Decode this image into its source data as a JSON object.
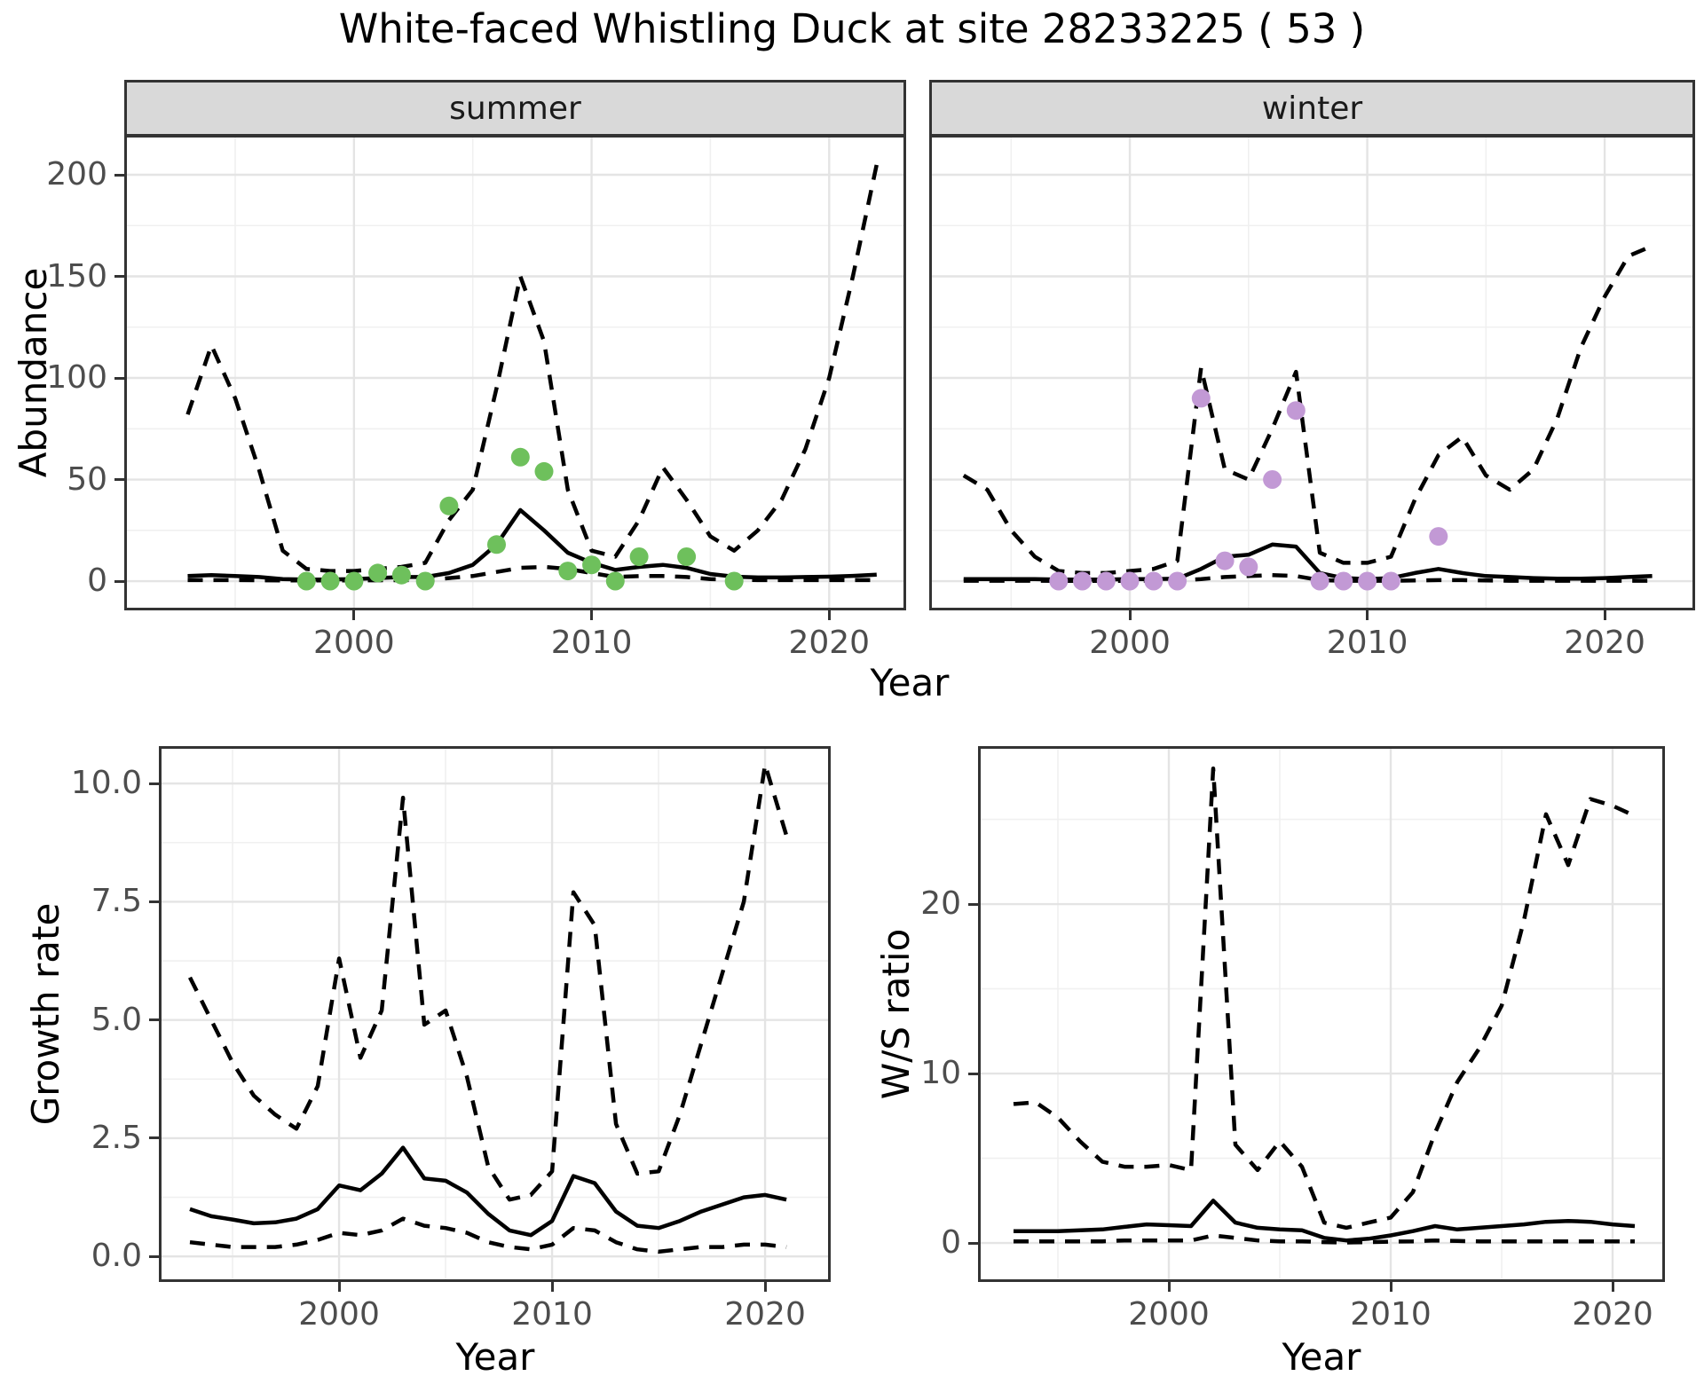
{
  "title": "White-faced Whistling Duck at site 28233225 ( 53 )",
  "facets": [
    {
      "id": "summer",
      "label": "summer"
    },
    {
      "id": "winter",
      "label": "winter"
    }
  ],
  "axes": {
    "abundance_label": "Abundance",
    "growth_label": "Growth rate",
    "ws_label": "W/S ratio",
    "year_label_top": "Year",
    "year_label_bottom_left": "Year",
    "year_label_bottom_right": "Year"
  },
  "colors": {
    "summer_points": "#6EC05C",
    "winter_points": "#C299D5",
    "line": "#000000",
    "tick_text": "#4D4D4D",
    "strip_bg": "#D9D9D9",
    "panel_border": "#333333",
    "grid_major": "#E4E4E4",
    "grid_minor": "#F0F0F0"
  },
  "chart_data": [
    {
      "id": "abundance-summer",
      "type": "line",
      "facet_label": "summer",
      "xlabel": "Year",
      "ylabel": "Abundance",
      "xlim": [
        1990.33,
        2023.24
      ],
      "ylim": [
        -14.4,
        219.65
      ],
      "x_ticks": [
        2000,
        2010,
        2020
      ],
      "x_tick_labels": [
        "2000",
        "2010",
        "2020"
      ],
      "x_minor_ticks": [
        1995,
        2005,
        2015
      ],
      "y_ticks": [
        0,
        50,
        100,
        150,
        200
      ],
      "y_tick_labels": [
        "0",
        "50",
        "100",
        "150",
        "200"
      ],
      "y_minor_ticks": [
        25,
        75,
        125,
        175
      ],
      "years": [
        1993,
        1994,
        1995,
        1996,
        1997,
        1998,
        1999,
        2000,
        2001,
        2002,
        2003,
        2004,
        2005,
        2006,
        2007,
        2008,
        2009,
        2010,
        2011,
        2012,
        2013,
        2014,
        2015,
        2016,
        2017,
        2018,
        2019,
        2020,
        2021,
        2022
      ],
      "series": [
        {
          "name": "median",
          "style": "solid",
          "values": [
            2.5,
            3,
            2.5,
            2,
            1,
            0.8,
            0.8,
            1,
            1.5,
            2,
            2,
            4,
            8,
            18,
            35,
            25,
            14,
            9,
            5.5,
            7,
            8,
            6.5,
            3.5,
            2.2,
            1.8,
            1.8,
            2,
            2.2,
            2.6,
            3.2
          ]
        },
        {
          "name": "lower_ci",
          "style": "dashed",
          "values": [
            0.5,
            0.5,
            0.5,
            0.4,
            0.3,
            0.3,
            0.3,
            0.3,
            0.4,
            0.5,
            0.5,
            1.5,
            2.5,
            4.5,
            6.5,
            7,
            6,
            4,
            2,
            2.5,
            2.5,
            2,
            1,
            0.8,
            0.5,
            0.5,
            0.5,
            0.5,
            0.5,
            0.5
          ]
        },
        {
          "name": "upper_ci",
          "style": "dashed",
          "values": [
            82,
            116,
            90,
            55,
            15,
            6,
            5,
            5,
            6,
            7,
            9,
            30,
            45,
            95,
            150,
            118,
            45,
            15,
            12,
            30,
            56,
            40,
            22,
            15,
            25,
            40,
            65,
            100,
            150,
            205
          ]
        }
      ],
      "points": {
        "name": "observed-counts-summer",
        "color": "#6EC05C",
        "years": [
          1998,
          1999,
          2000,
          2001,
          2002,
          2003,
          2004,
          2006,
          2007,
          2008,
          2009,
          2010,
          2011,
          2012,
          2014,
          2016
        ],
        "values": [
          0,
          0,
          0,
          4,
          3,
          0,
          37,
          18,
          61,
          54,
          5,
          8,
          0,
          12,
          12,
          0
        ]
      }
    },
    {
      "id": "abundance-winter",
      "type": "line",
      "facet_label": "winter",
      "xlabel": "Year",
      "ylabel": "Abundance",
      "xlim": [
        1991.55,
        2023.81
      ],
      "ylim": [
        -14.4,
        219.65
      ],
      "x_ticks": [
        2000,
        2010,
        2020
      ],
      "x_tick_labels": [
        "2000",
        "2010",
        "2020"
      ],
      "x_minor_ticks": [
        1995,
        2005,
        2015
      ],
      "y_ticks": [
        0,
        50,
        100,
        150,
        200
      ],
      "y_tick_labels": [
        "0",
        "50",
        "100",
        "150",
        "200"
      ],
      "y_minor_ticks": [
        25,
        75,
        125,
        175
      ],
      "years": [
        1993,
        1994,
        1995,
        1996,
        1997,
        1998,
        1999,
        2000,
        2001,
        2002,
        2003,
        2004,
        2005,
        2006,
        2007,
        2008,
        2009,
        2010,
        2011,
        2012,
        2013,
        2014,
        2015,
        2016,
        2017,
        2018,
        2019,
        2020,
        2021,
        2022
      ],
      "series": [
        {
          "name": "median",
          "style": "solid",
          "values": [
            1,
            1,
            1,
            1,
            0.8,
            0.8,
            0.8,
            1,
            1,
            1.2,
            6,
            12,
            13,
            18,
            17,
            4,
            1.5,
            1,
            1.5,
            4,
            6,
            4,
            2.5,
            2,
            1.5,
            1.2,
            1.2,
            1.5,
            2,
            2.5
          ]
        },
        {
          "name": "lower_ci",
          "style": "dashed",
          "values": [
            0.2,
            0.2,
            0.2,
            0.2,
            0.1,
            0.1,
            0.1,
            0.2,
            0.2,
            0.3,
            1,
            2,
            2.5,
            3,
            2.5,
            0.5,
            0.2,
            0.2,
            0.2,
            0.3,
            0.5,
            0.5,
            0.3,
            0.2,
            0.2,
            0.2,
            0.2,
            0.2,
            0.2,
            0.2
          ]
        },
        {
          "name": "upper_ci",
          "style": "dashed",
          "values": [
            52,
            45,
            25,
            12,
            5,
            4,
            4,
            5,
            6,
            10,
            105,
            55,
            50,
            75,
            103,
            14,
            9,
            9,
            12,
            40,
            62,
            71,
            52,
            45,
            55,
            80,
            115,
            140,
            160,
            165
          ]
        }
      ],
      "points": {
        "name": "observed-counts-winter",
        "color": "#C299D5",
        "years": [
          1997,
          1998,
          1999,
          2000,
          2001,
          2002,
          2003,
          2004,
          2005,
          2006,
          2007,
          2008,
          2009,
          2010,
          2011,
          2013
        ],
        "values": [
          0,
          0,
          0,
          0,
          0,
          0,
          90,
          10,
          7,
          50,
          84,
          0,
          0,
          0,
          0,
          22
        ]
      }
    },
    {
      "id": "growth-rate",
      "type": "line",
      "facet_label": "",
      "xlabel": "Year",
      "ylabel": "Growth rate",
      "xlim": [
        1991.54,
        2023.08
      ],
      "ylim": [
        -0.54,
        10.79
      ],
      "x_ticks": [
        2000,
        2010,
        2020
      ],
      "x_tick_labels": [
        "2000",
        "2010",
        "2020"
      ],
      "x_minor_ticks": [
        1995,
        2005,
        2015
      ],
      "y_ticks": [
        0.0,
        2.5,
        5.0,
        7.5,
        10.0
      ],
      "y_tick_labels": [
        "0.0",
        "2.5",
        "5.0",
        "7.5",
        "10.0"
      ],
      "y_minor_ticks": [
        1.25,
        3.75,
        6.25,
        8.75
      ],
      "years": [
        1993,
        1994,
        1995,
        1996,
        1997,
        1998,
        1999,
        2000,
        2001,
        2002,
        2003,
        2004,
        2005,
        2006,
        2007,
        2008,
        2009,
        2010,
        2011,
        2012,
        2013,
        2014,
        2015,
        2016,
        2017,
        2018,
        2019,
        2020,
        2021
      ],
      "series": [
        {
          "name": "median",
          "style": "solid",
          "values": [
            1.0,
            0.85,
            0.78,
            0.7,
            0.72,
            0.8,
            1.0,
            1.5,
            1.4,
            1.75,
            2.3,
            1.65,
            1.6,
            1.35,
            0.9,
            0.55,
            0.45,
            0.75,
            1.7,
            1.55,
            0.95,
            0.65,
            0.6,
            0.75,
            0.95,
            1.1,
            1.25,
            1.3,
            1.2
          ]
        },
        {
          "name": "lower_ci",
          "style": "dashed",
          "values": [
            0.3,
            0.25,
            0.2,
            0.2,
            0.2,
            0.25,
            0.35,
            0.5,
            0.45,
            0.55,
            0.8,
            0.65,
            0.6,
            0.5,
            0.3,
            0.2,
            0.15,
            0.25,
            0.6,
            0.55,
            0.3,
            0.15,
            0.1,
            0.15,
            0.2,
            0.2,
            0.25,
            0.25,
            0.2
          ]
        },
        {
          "name": "upper_ci",
          "style": "dashed",
          "values": [
            5.9,
            5.0,
            4.1,
            3.4,
            3.0,
            2.7,
            3.6,
            6.3,
            4.2,
            5.2,
            9.7,
            4.9,
            5.2,
            3.8,
            1.9,
            1.2,
            1.3,
            1.8,
            7.7,
            7.0,
            2.8,
            1.75,
            1.8,
            3.0,
            4.5,
            6.0,
            7.5,
            10.4,
            8.9
          ]
        }
      ],
      "points": null
    },
    {
      "id": "ws-ratio",
      "type": "line",
      "facet_label": "",
      "xlabel": "Year",
      "ylabel": "W/S ratio",
      "xlim": [
        1991.4,
        2022.36
      ],
      "ylim": [
        -2.3,
        29.32
      ],
      "x_ticks": [
        2000,
        2010,
        2020
      ],
      "x_tick_labels": [
        "2000",
        "2010",
        "2020"
      ],
      "x_minor_ticks": [
        1995,
        2005,
        2015
      ],
      "y_ticks": [
        0,
        10,
        20
      ],
      "y_tick_labels": [
        "0",
        "10",
        "20"
      ],
      "y_minor_ticks": [
        5,
        15,
        25
      ],
      "years": [
        1993,
        1994,
        1995,
        1996,
        1997,
        1998,
        1999,
        2000,
        2001,
        2002,
        2003,
        2004,
        2005,
        2006,
        2007,
        2008,
        2009,
        2010,
        2011,
        2012,
        2013,
        2014,
        2015,
        2016,
        2017,
        2018,
        2019,
        2020,
        2021
      ],
      "series": [
        {
          "name": "median",
          "style": "solid",
          "values": [
            0.7,
            0.7,
            0.7,
            0.75,
            0.8,
            0.95,
            1.1,
            1.05,
            1.0,
            2.5,
            1.2,
            0.9,
            0.8,
            0.75,
            0.3,
            0.15,
            0.25,
            0.45,
            0.7,
            1.0,
            0.8,
            0.9,
            1.0,
            1.1,
            1.25,
            1.3,
            1.25,
            1.1,
            1.0
          ]
        },
        {
          "name": "lower_ci",
          "style": "dashed",
          "values": [
            0.1,
            0.1,
            0.1,
            0.1,
            0.1,
            0.15,
            0.15,
            0.15,
            0.15,
            0.45,
            0.3,
            0.15,
            0.1,
            0.1,
            0.05,
            0.03,
            0.05,
            0.08,
            0.1,
            0.15,
            0.12,
            0.1,
            0.1,
            0.1,
            0.1,
            0.1,
            0.1,
            0.1,
            0.1
          ]
        },
        {
          "name": "upper_ci",
          "style": "dashed",
          "values": [
            8.2,
            8.3,
            7.4,
            6.0,
            4.8,
            4.5,
            4.5,
            4.6,
            4.3,
            28,
            5.8,
            4.3,
            6.0,
            4.5,
            1.2,
            0.9,
            1.2,
            1.5,
            3.0,
            6.5,
            9.5,
            11.5,
            14,
            19,
            25.3,
            22.3,
            26.2,
            25.8,
            25.2
          ]
        }
      ],
      "points": null
    }
  ]
}
